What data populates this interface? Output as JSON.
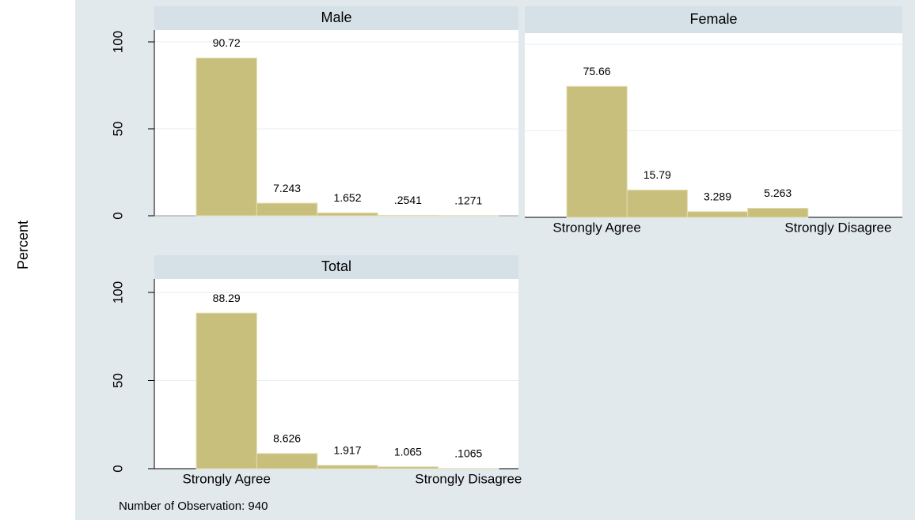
{
  "ylabel": "Percent",
  "note": "Number of Observation: 940",
  "chart_data": [
    {
      "type": "bar",
      "title": "Male",
      "categories": [
        "Strongly Agree",
        null,
        null,
        null,
        "Strongly Disagree"
      ],
      "values": [
        90.72,
        7.243,
        1.652,
        0.2541,
        0.1271
      ],
      "value_labels": [
        "90.72",
        "7.243",
        "1.652",
        ".2541",
        ".1271"
      ],
      "color": "#c9bf7d",
      "ylim": [
        0,
        100
      ],
      "yticks": [
        0,
        50,
        100
      ],
      "ytick_labels": true,
      "xtick_labels": false,
      "grid": true
    },
    {
      "type": "bar",
      "title": "Female",
      "categories": [
        "Strongly Agree",
        null,
        null,
        null,
        "Strongly Disagree"
      ],
      "values": [
        75.66,
        15.79,
        3.289,
        5.263,
        null
      ],
      "value_labels": [
        "75.66",
        "15.79",
        "3.289",
        "5.263",
        null
      ],
      "color": "#c9bf7d",
      "ylim": [
        0,
        100
      ],
      "yticks": [
        0,
        50,
        100
      ],
      "ytick_labels": false,
      "xtick_labels": true,
      "grid": true
    },
    {
      "type": "bar",
      "title": "Total",
      "categories": [
        "Strongly Agree",
        null,
        null,
        null,
        "Strongly Disagree"
      ],
      "values": [
        88.29,
        8.626,
        1.917,
        1.065,
        0.1065
      ],
      "value_labels": [
        "88.29",
        "8.626",
        "1.917",
        "1.065",
        ".1065"
      ],
      "color": "#c9bf7d",
      "ylim": [
        0,
        100
      ],
      "yticks": [
        0,
        50,
        100
      ],
      "ytick_labels": true,
      "xtick_labels": true,
      "grid": true
    }
  ]
}
